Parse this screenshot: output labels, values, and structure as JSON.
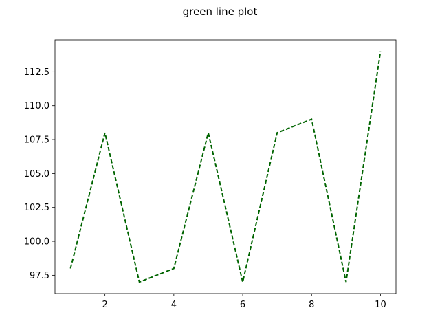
{
  "chart_data": {
    "type": "line",
    "title": "green line plot",
    "xlabel": "",
    "ylabel": "",
    "x": [
      1,
      2,
      3,
      4,
      5,
      6,
      7,
      8,
      9,
      10
    ],
    "series": [
      {
        "values": [
          98,
          108,
          97,
          98,
          108,
          97,
          108,
          109,
          97,
          114
        ],
        "color": "#006400",
        "linestyle": "dashed"
      }
    ],
    "xlim": [
      0.55,
      10.45
    ],
    "ylim": [
      96.15,
      114.85
    ],
    "xticks": [
      2,
      4,
      6,
      8,
      10
    ],
    "xtick_labels": [
      "2",
      "4",
      "6",
      "8",
      "10"
    ],
    "yticks": [
      97.5,
      100.0,
      102.5,
      105.0,
      107.5,
      110.0,
      112.5
    ],
    "ytick_labels": [
      "97.5",
      "100.0",
      "102.5",
      "105.0",
      "107.5",
      "110.0",
      "112.5"
    ],
    "grid": false,
    "legend": false
  }
}
